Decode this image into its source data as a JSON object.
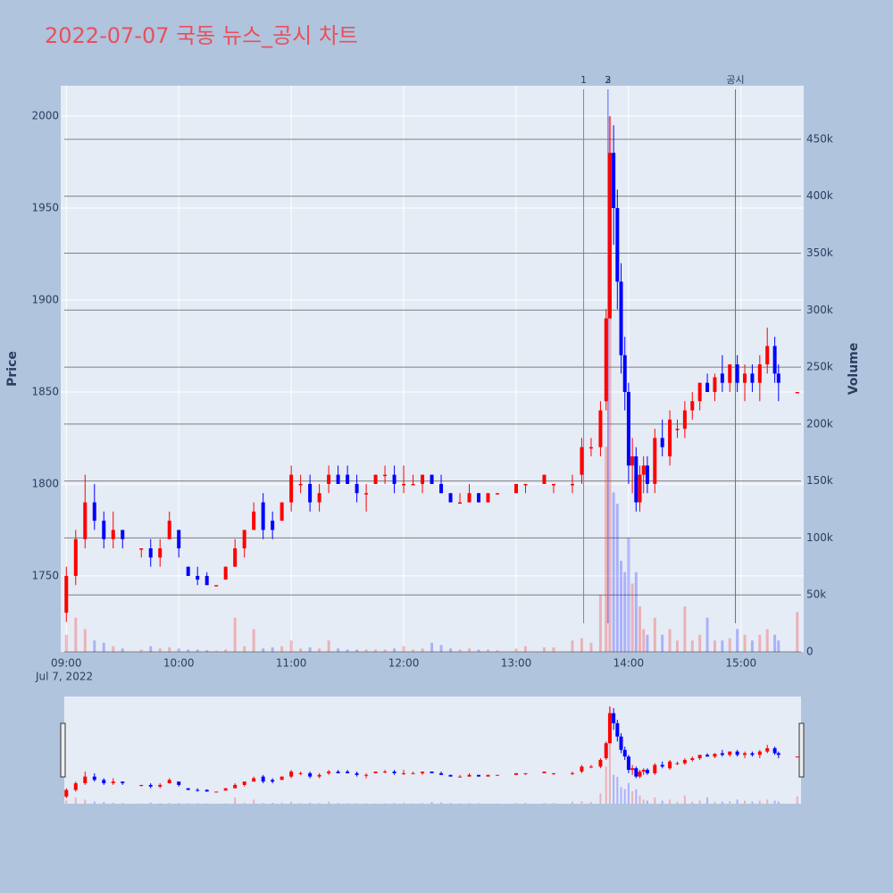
{
  "chart_data": {
    "type": "candlestick",
    "title": "2022-07-07 국동 뉴스_공시 차트",
    "y_label": "Price",
    "y2_label": "Volume",
    "date_label": "Jul 7, 2022",
    "increasing_color": "#ff0000",
    "decreasing_color": "#0000ff",
    "grid": true,
    "xlim": [
      "08:57",
      "15:32"
    ],
    "xticks": [
      "09:00",
      "10:00",
      "11:00",
      "12:00",
      "13:00",
      "14:00",
      "15:00"
    ],
    "ylim": [
      1708.7,
      2016.5
    ],
    "yticks": [
      1750,
      1800,
      1850,
      1900,
      1950,
      2000
    ],
    "y2lim": [
      0,
      497000
    ],
    "y2ticks": [
      0,
      {
        "value": 50000,
        "label": "50k"
      },
      {
        "value": 100000,
        "label": "100k"
      },
      {
        "value": 150000,
        "label": "150k"
      },
      {
        "value": 200000,
        "label": "200k"
      },
      {
        "value": 250000,
        "label": "250k"
      },
      {
        "value": 300000,
        "label": "300k"
      },
      {
        "value": 350000,
        "label": "350k"
      },
      {
        "value": 400000,
        "label": "400k"
      },
      {
        "value": 450000,
        "label": "450k"
      }
    ],
    "annotations": [
      {
        "x": "13:36",
        "label": "1",
        "color": "#6a7fff"
      },
      {
        "x": "13:49",
        "label": "2",
        "color": "#6a7fff"
      },
      {
        "x": "13:49",
        "label": "3",
        "color": "#6a7fff"
      },
      {
        "x": "14:57",
        "label": "공시",
        "color": "#4a8a4a"
      }
    ],
    "x": [
      "09:00",
      "09:05",
      "09:10",
      "09:15",
      "09:20",
      "09:25",
      "09:30",
      "09:40",
      "09:45",
      "09:50",
      "09:55",
      "10:00",
      "10:05",
      "10:10",
      "10:15",
      "10:20",
      "10:25",
      "10:30",
      "10:35",
      "10:40",
      "10:45",
      "10:50",
      "10:55",
      "11:00",
      "11:05",
      "11:10",
      "11:15",
      "11:20",
      "11:25",
      "11:30",
      "11:35",
      "11:40",
      "11:45",
      "11:50",
      "11:55",
      "12:00",
      "12:05",
      "12:10",
      "12:15",
      "12:20",
      "12:25",
      "12:30",
      "12:35",
      "12:40",
      "12:45",
      "12:50",
      "13:00",
      "13:05",
      "13:15",
      "13:20",
      "13:30",
      "13:35",
      "13:40",
      "13:45",
      "13:48",
      "13:50",
      "13:52",
      "13:54",
      "13:56",
      "13:58",
      "14:00",
      "14:02",
      "14:04",
      "14:06",
      "14:08",
      "14:10",
      "14:14",
      "14:18",
      "14:22",
      "14:26",
      "14:30",
      "14:34",
      "14:38",
      "14:42",
      "14:46",
      "14:50",
      "14:54",
      "14:58",
      "15:02",
      "15:06",
      "15:10",
      "15:14",
      "15:18",
      "15:20",
      "15:30"
    ],
    "open": [
      1730,
      1750,
      1770,
      1790,
      1780,
      1770,
      1775,
      1765,
      1765,
      1760,
      1770,
      1775,
      1755,
      1750,
      1750,
      1745,
      1748,
      1755,
      1765,
      1775,
      1790,
      1780,
      1780,
      1790,
      1800,
      1800,
      1790,
      1800,
      1805,
      1805,
      1800,
      1795,
      1800,
      1805,
      1805,
      1800,
      1800,
      1800,
      1805,
      1800,
      1795,
      1790,
      1790,
      1795,
      1790,
      1795,
      1795,
      1800,
      1800,
      1800,
      1800,
      1805,
      1820,
      1820,
      1845,
      1890,
      1980,
      1950,
      1910,
      1870,
      1850,
      1810,
      1815,
      1790,
      1805,
      1810,
      1800,
      1825,
      1815,
      1830,
      1830,
      1840,
      1845,
      1855,
      1850,
      1860,
      1855,
      1865,
      1855,
      1860,
      1855,
      1865,
      1875,
      1860,
      1850
    ],
    "high": [
      1755,
      1775,
      1805,
      1800,
      1785,
      1785,
      1775,
      1765,
      1770,
      1770,
      1785,
      1775,
      1755,
      1755,
      1752,
      1745,
      1755,
      1770,
      1775,
      1790,
      1795,
      1785,
      1790,
      1810,
      1805,
      1805,
      1800,
      1810,
      1810,
      1810,
      1805,
      1800,
      1805,
      1810,
      1810,
      1810,
      1805,
      1805,
      1805,
      1805,
      1795,
      1795,
      1800,
      1795,
      1795,
      1795,
      1800,
      1800,
      1805,
      1800,
      1805,
      1825,
      1825,
      1845,
      1895,
      2000,
      1995,
      1960,
      1920,
      1880,
      1855,
      1825,
      1820,
      1810,
      1815,
      1815,
      1830,
      1835,
      1840,
      1835,
      1845,
      1850,
      1855,
      1860,
      1860,
      1870,
      1865,
      1870,
      1865,
      1865,
      1870,
      1885,
      1880,
      1865,
      1850
    ],
    "low": [
      1725,
      1745,
      1765,
      1775,
      1765,
      1765,
      1765,
      1760,
      1755,
      1755,
      1770,
      1760,
      1750,
      1745,
      1745,
      1745,
      1748,
      1755,
      1760,
      1775,
      1770,
      1770,
      1780,
      1785,
      1795,
      1785,
      1785,
      1795,
      1800,
      1800,
      1790,
      1785,
      1800,
      1800,
      1795,
      1795,
      1800,
      1795,
      1800,
      1795,
      1790,
      1790,
      1790,
      1790,
      1790,
      1795,
      1795,
      1795,
      1800,
      1795,
      1795,
      1800,
      1815,
      1815,
      1840,
      1890,
      1930,
      1895,
      1860,
      1840,
      1800,
      1795,
      1785,
      1785,
      1795,
      1795,
      1795,
      1815,
      1810,
      1825,
      1825,
      1835,
      1840,
      1850,
      1845,
      1850,
      1850,
      1850,
      1845,
      1850,
      1845,
      1860,
      1855,
      1845,
      1850
    ],
    "close": [
      1750,
      1770,
      1790,
      1780,
      1770,
      1775,
      1770,
      1765,
      1760,
      1765,
      1780,
      1765,
      1750,
      1748,
      1745,
      1745,
      1755,
      1765,
      1775,
      1785,
      1775,
      1775,
      1790,
      1805,
      1800,
      1790,
      1795,
      1805,
      1800,
      1800,
      1795,
      1795,
      1805,
      1805,
      1800,
      1800,
      1800,
      1805,
      1800,
      1795,
      1790,
      1790,
      1795,
      1790,
      1795,
      1795,
      1800,
      1800,
      1805,
      1800,
      1800,
      1820,
      1820,
      1840,
      1890,
      1980,
      1950,
      1910,
      1870,
      1850,
      1810,
      1815,
      1790,
      1805,
      1810,
      1800,
      1825,
      1820,
      1835,
      1830,
      1840,
      1845,
      1855,
      1850,
      1858,
      1855,
      1865,
      1855,
      1860,
      1855,
      1865,
      1875,
      1860,
      1855,
      1850
    ],
    "volume": [
      15000,
      30000,
      20000,
      10000,
      8000,
      5000,
      3000,
      2000,
      5000,
      3000,
      4000,
      3000,
      2000,
      2000,
      1500,
      1000,
      2000,
      30000,
      5000,
      20000,
      3000,
      4000,
      5000,
      10000,
      3000,
      4000,
      3000,
      10000,
      3000,
      2000,
      2000,
      2000,
      2000,
      2000,
      3000,
      5000,
      2000,
      3000,
      8000,
      6000,
      3000,
      2000,
      3000,
      2000,
      2000,
      1500,
      3000,
      5000,
      4000,
      4000,
      10000,
      12000,
      8000,
      50000,
      180000,
      470000,
      140000,
      130000,
      80000,
      70000,
      100000,
      60000,
      70000,
      40000,
      20000,
      15000,
      30000,
      15000,
      20000,
      10000,
      40000,
      10000,
      15000,
      30000,
      10000,
      10000,
      12000,
      20000,
      15000,
      10000,
      15000,
      20000,
      15000,
      10000,
      35000
    ]
  }
}
